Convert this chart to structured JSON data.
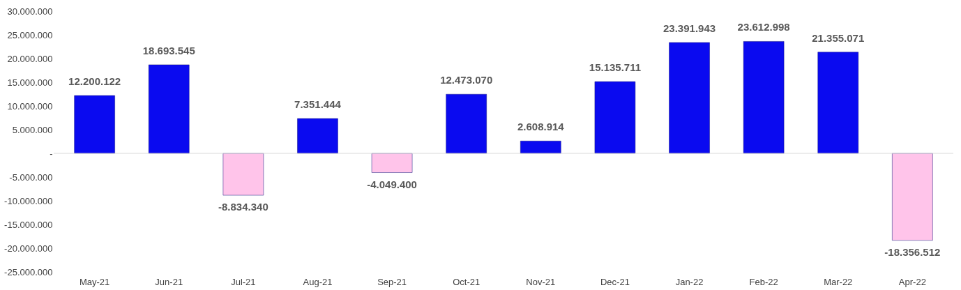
{
  "chart_data": {
    "type": "bar",
    "categories": [
      "May-21",
      "Jun-21",
      "Jul-21",
      "Aug-21",
      "Sep-21",
      "Oct-21",
      "Nov-21",
      "Dec-21",
      "Jan-22",
      "Feb-22",
      "Mar-22",
      "Apr-22"
    ],
    "values": [
      12200122,
      18693545,
      -8834340,
      7351444,
      -4049400,
      12473070,
      2608914,
      15135711,
      23391943,
      23612998,
      21355071,
      -18356512
    ],
    "colors": [
      "#0a0af0",
      "#0a0af0",
      "#ffc4ea",
      "#0a0af0",
      "#ffc4ea",
      "#0a0af0",
      "#0a0af0",
      "#0a0af0",
      "#0a0af0",
      "#0a0af0",
      "#0a0af0",
      "#ffc4ea"
    ],
    "value_labels": [
      "12.200.122",
      "18.693.545",
      "-8.834.340",
      "7.351.444",
      "-4.049.400",
      "12.473.070",
      "2.608.914",
      "15.135.711",
      "23.391.943",
      "23.612.998",
      "21.355.071",
      "-18.356.512"
    ],
    "ylim": [
      -25000000,
      30000000
    ],
    "yticks": [
      {
        "value": -25000000,
        "label": "-25.000.000"
      },
      {
        "value": -20000000,
        "label": "-20.000.000"
      },
      {
        "value": -15000000,
        "label": "-15.000.000"
      },
      {
        "value": -10000000,
        "label": "-10.000.000"
      },
      {
        "value": -5000000,
        "label": "-5.000.000"
      },
      {
        "value": 0,
        "label": "-"
      },
      {
        "value": 5000000,
        "label": "5.000.000"
      },
      {
        "value": 10000000,
        "label": "10.000.000"
      },
      {
        "value": 15000000,
        "label": "15.000.000"
      },
      {
        "value": 20000000,
        "label": "20.000.000"
      },
      {
        "value": 25000000,
        "label": "25.000.000"
      },
      {
        "value": 30000000,
        "label": "30.000.000"
      }
    ],
    "ref_lines": [
      {
        "axis": "y",
        "value": 0,
        "color": "#d9d9d9"
      }
    ],
    "grid": false
  }
}
